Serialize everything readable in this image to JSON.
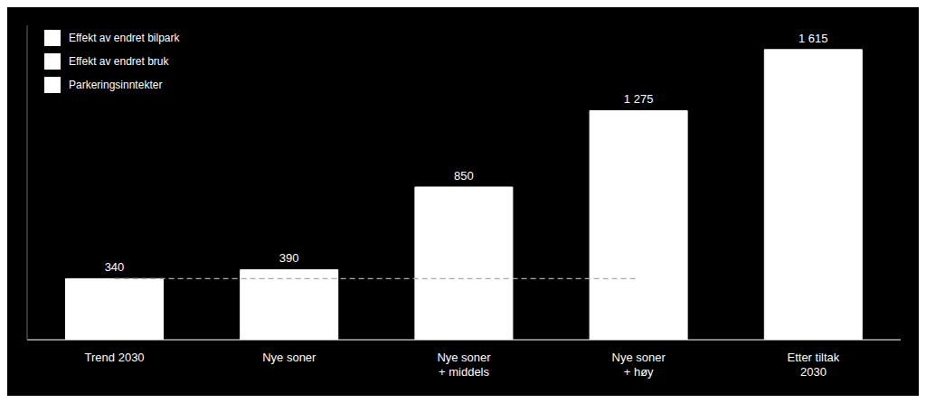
{
  "chart_data": {
    "type": "bar",
    "categories": [
      "Trend 2030",
      "Nye soner",
      "Nye soner\n+ middels",
      "Nye soner\n+ høy",
      "Etter tiltak\n2030"
    ],
    "values": [
      340,
      390,
      850,
      1275,
      1615
    ],
    "value_labels": [
      "340",
      "390",
      "850",
      "1 275",
      "1 615"
    ],
    "data_labels": true,
    "color": "#ffffff",
    "ylim": [
      0,
      1750
    ],
    "tick_labels": "x",
    "grid": false,
    "legend": "upper left",
    "legend_entries": [
      "Effekt av endret bilpark",
      "Effekt av endret bruk",
      "Parkeringsinntekter"
    ],
    "reference_line": {
      "value": 340,
      "color": "#aaaaaa",
      "line_style": "dashed"
    }
  }
}
